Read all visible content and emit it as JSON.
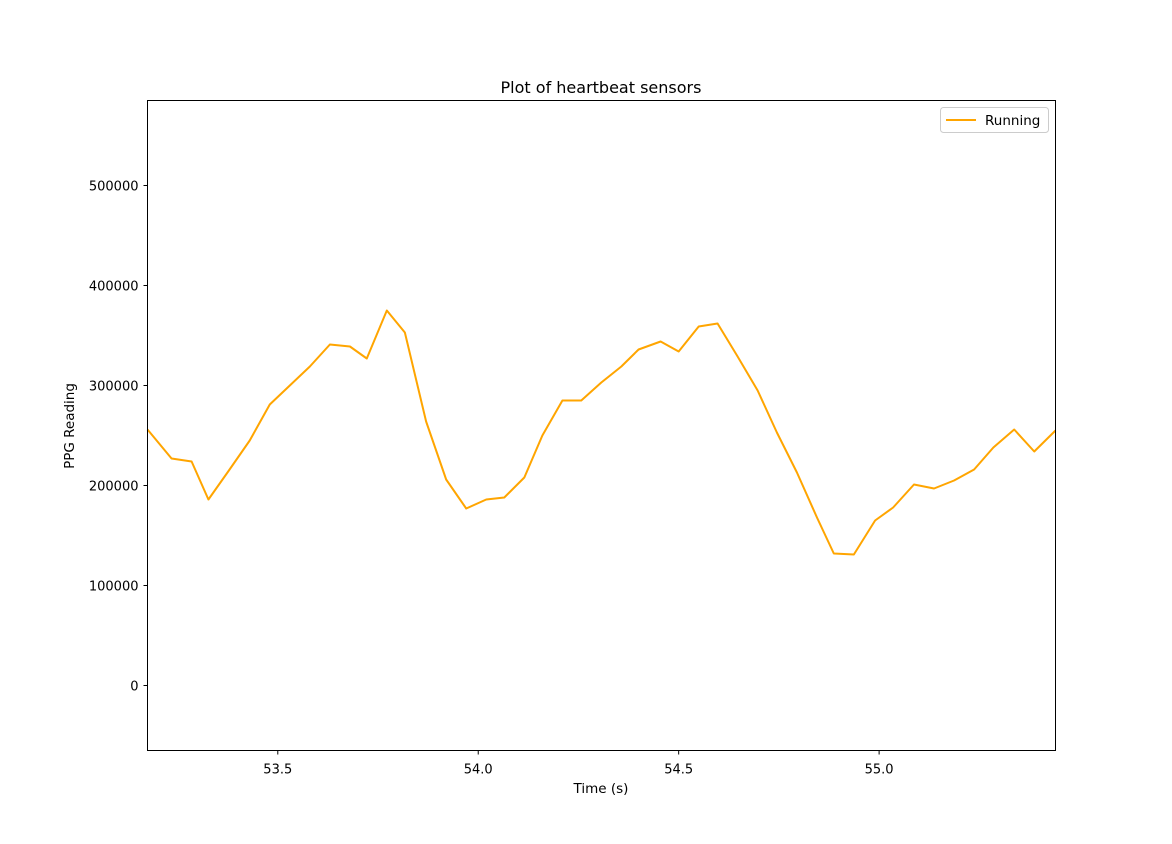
{
  "chart_data": {
    "type": "line",
    "title": "Plot of heartbeat sensors",
    "xlabel": "Time (s)",
    "ylabel": "PPG Reading",
    "xlim": [
      53.175,
      55.44
    ],
    "ylim": [
      -65000,
      585000
    ],
    "xticks": [
      {
        "value": 53.5,
        "label": "53.5"
      },
      {
        "value": 54.0,
        "label": "54.0"
      },
      {
        "value": 54.5,
        "label": "54.5"
      },
      {
        "value": 55.0,
        "label": "55.0"
      }
    ],
    "yticks": [
      {
        "value": 0,
        "label": "0"
      },
      {
        "value": 100000,
        "label": "100000"
      },
      {
        "value": 200000,
        "label": "200000"
      },
      {
        "value": 300000,
        "label": "300000"
      },
      {
        "value": 400000,
        "label": "400000"
      },
      {
        "value": 500000,
        "label": "500000"
      }
    ],
    "grid": false,
    "legend": "top-right",
    "series": [
      {
        "name": "Running",
        "color": "#ffa500",
        "x": [
          53.175,
          53.235,
          53.285,
          53.327,
          53.378,
          53.43,
          53.48,
          53.53,
          53.58,
          53.63,
          53.68,
          53.722,
          53.772,
          53.817,
          53.87,
          53.92,
          53.97,
          54.02,
          54.065,
          54.115,
          54.16,
          54.21,
          54.257,
          54.307,
          54.357,
          54.4,
          54.455,
          54.5,
          54.55,
          54.597,
          54.647,
          54.697,
          54.745,
          54.795,
          54.845,
          54.887,
          54.937,
          54.99,
          55.035,
          55.087,
          55.137,
          55.187,
          55.237,
          55.285,
          55.337,
          55.387,
          55.44
        ],
        "y": [
          256000,
          227000,
          224000,
          186000,
          215000,
          245000,
          281000,
          300000,
          319000,
          341000,
          339000,
          327000,
          375000,
          353000,
          264000,
          206000,
          177000,
          186000,
          188000,
          208000,
          250000,
          285000,
          285000,
          303000,
          319000,
          336000,
          344000,
          334000,
          359000,
          362000,
          329000,
          295000,
          253000,
          213000,
          168000,
          132000,
          131000,
          165000,
          178000,
          201000,
          197000,
          205000,
          216000,
          238000,
          256000,
          234000,
          255000
        ]
      }
    ]
  }
}
